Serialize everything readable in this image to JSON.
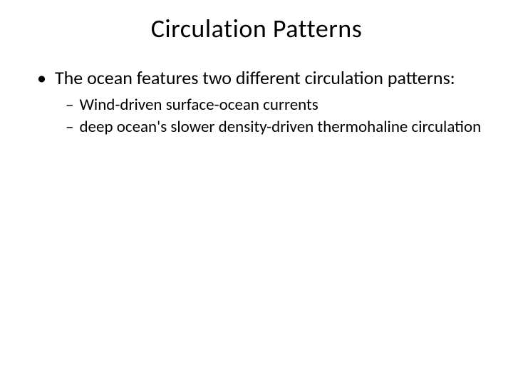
{
  "slide": {
    "title": "Circulation Patterns",
    "title_fontsize": 36,
    "background_color": "#ffffff",
    "text_color": "#000000",
    "bullets_l1": [
      {
        "marker": "•",
        "text": "The ocean features two different circulation patterns:",
        "fontsize": 26
      }
    ],
    "bullets_l2": [
      {
        "marker": "–",
        "text": "Wind-driven surface-ocean currents",
        "fontsize": 23
      },
      {
        "marker": "–",
        "text": "deep ocean's slower density-driven thermohaline circulation",
        "fontsize": 23
      }
    ]
  }
}
